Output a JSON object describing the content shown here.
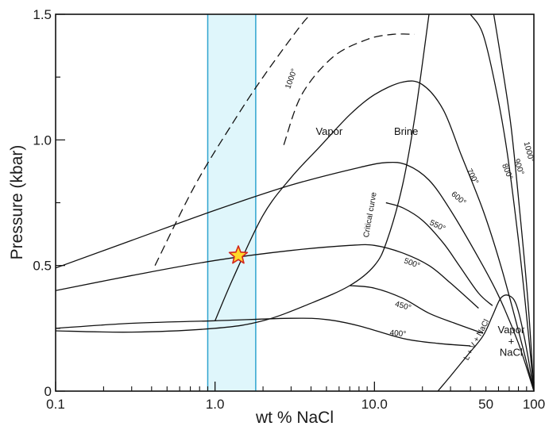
{
  "chart_data": {
    "type": "line",
    "xlabel": "wt % NaCl",
    "ylabel": "Pressure (kbar)",
    "xscale": "log",
    "xlim": [
      0.1,
      100
    ],
    "ylim": [
      0,
      1.5
    ],
    "x_ticks": [
      "0.1",
      "1.0",
      "10.0",
      "50",
      "100"
    ],
    "y_ticks": [
      "0",
      "0.5",
      "1.0",
      "1.5"
    ],
    "highlight_band": {
      "x_from": 0.9,
      "x_to": 1.8,
      "color": "#dff6fb",
      "edge_color": "#2ea3cf"
    },
    "marker": {
      "x": 1.4,
      "y": 0.54,
      "shape": "star",
      "fill": "#ffd92a",
      "stroke": "#d3261d"
    },
    "regions": [
      {
        "label": "Vapor",
        "x": 5.2,
        "y": 1.02
      },
      {
        "label": "Brine",
        "x": 15.8,
        "y": 1.02
      },
      {
        "label": "Vapor",
        "x": 72,
        "y": 0.23
      },
      {
        "label": "+",
        "x": 72,
        "y": 0.185
      },
      {
        "label": "NaCl",
        "x": 72,
        "y": 0.14
      }
    ],
    "curve_labels": [
      {
        "label": "1000°",
        "x": 3.1,
        "y": 1.24,
        "angle": -70
      },
      {
        "label": "1000°",
        "x": 90,
        "y": 0.95,
        "angle": 75
      },
      {
        "label": "900°",
        "x": 78,
        "y": 0.89,
        "angle": 72
      },
      {
        "label": "800°",
        "x": 66,
        "y": 0.87,
        "angle": 68
      },
      {
        "label": "700°",
        "x": 40,
        "y": 0.85,
        "angle": 62
      },
      {
        "label": "600°",
        "x": 33,
        "y": 0.76,
        "angle": 40
      },
      {
        "label": "550°",
        "x": 24.5,
        "y": 0.65,
        "angle": 25
      },
      {
        "label": "500°",
        "x": 17,
        "y": 0.5,
        "angle": 20
      },
      {
        "label": "450°",
        "x": 15,
        "y": 0.33,
        "angle": 15
      },
      {
        "label": "400°",
        "x": 14,
        "y": 0.22,
        "angle": 5
      },
      {
        "label": "Critical curve",
        "x": 9.7,
        "y": 0.7,
        "angle": -80
      },
      {
        "label": "L + V + NaCl",
        "x": 45,
        "y": 0.2,
        "angle": -62
      }
    ],
    "series": [
      {
        "style": "dashed",
        "points": [
          [
            0.42,
            0.5
          ],
          [
            0.75,
            0.82
          ],
          [
            1.3,
            1.07
          ],
          [
            2.0,
            1.25
          ],
          [
            3.4,
            1.45
          ],
          [
            4.0,
            1.5
          ]
        ]
      },
      {
        "style": "dashed",
        "points": [
          [
            2.7,
            0.98
          ],
          [
            3.5,
            1.18
          ],
          [
            5.5,
            1.33
          ],
          [
            9.0,
            1.4
          ],
          [
            13.0,
            1.42
          ],
          [
            17.8,
            1.42
          ]
        ]
      },
      {
        "style": "solid",
        "points": [
          [
            0.1,
            0.49
          ],
          [
            0.3,
            0.6
          ],
          [
            1.0,
            0.72
          ],
          [
            3.0,
            0.82
          ],
          [
            8.0,
            0.89
          ],
          [
            12.0,
            0.91
          ],
          [
            16.0,
            0.9
          ],
          [
            22.0,
            0.84
          ],
          [
            30.0,
            0.72
          ],
          [
            45.0,
            0.53
          ],
          [
            60.0,
            0.38
          ],
          [
            80.0,
            0.19
          ],
          [
            100.0,
            0.0
          ]
        ]
      },
      {
        "style": "solid",
        "points": [
          [
            1.0,
            0.28
          ],
          [
            1.3,
            0.45
          ],
          [
            2.0,
            0.7
          ],
          [
            3.0,
            0.85
          ],
          [
            4.5,
            0.97
          ],
          [
            7.0,
            1.1
          ],
          [
            10.0,
            1.18
          ],
          [
            15.0,
            1.23
          ],
          [
            20.0,
            1.22
          ],
          [
            27.0,
            1.12
          ],
          [
            35.0,
            0.94
          ],
          [
            48.0,
            0.72
          ],
          [
            62.0,
            0.5
          ],
          [
            80.0,
            0.24
          ],
          [
            100.0,
            0.0
          ]
        ]
      },
      {
        "style": "solid",
        "points": [
          [
            0.1,
            0.4
          ],
          [
            0.3,
            0.46
          ],
          [
            1.0,
            0.52
          ],
          [
            3.0,
            0.56
          ],
          [
            7.0,
            0.58
          ],
          [
            10.0,
            0.58
          ],
          [
            15.0,
            0.55
          ],
          [
            22.0,
            0.5
          ],
          [
            30.0,
            0.43
          ],
          [
            45.0,
            0.33
          ]
        ]
      },
      {
        "style": "solid",
        "points": [
          [
            11.8,
            0.75
          ],
          [
            15.0,
            0.73
          ],
          [
            20.0,
            0.68
          ],
          [
            27.0,
            0.59
          ],
          [
            34.0,
            0.5
          ],
          [
            45.0,
            0.39
          ],
          [
            55.0,
            0.34
          ]
        ]
      },
      {
        "style": "solid",
        "points": [
          [
            7.0,
            0.42
          ],
          [
            10.0,
            0.41
          ],
          [
            15.0,
            0.37
          ],
          [
            22.0,
            0.31
          ],
          [
            32.0,
            0.27
          ],
          [
            48.0,
            0.23
          ]
        ]
      },
      {
        "style": "solid",
        "points": [
          [
            0.1,
            0.25
          ],
          [
            0.3,
            0.27
          ],
          [
            1.0,
            0.28
          ],
          [
            3.0,
            0.29
          ],
          [
            5.0,
            0.285
          ],
          [
            8.0,
            0.26
          ],
          [
            15.0,
            0.21
          ],
          [
            25.0,
            0.19
          ],
          [
            40.0,
            0.18
          ]
        ]
      },
      {
        "style": "solid",
        "points": [
          [
            0.1,
            0.24
          ],
          [
            0.3,
            0.235
          ],
          [
            1.0,
            0.25
          ],
          [
            2.0,
            0.28
          ],
          [
            4.0,
            0.35
          ],
          [
            7.0,
            0.42
          ],
          [
            10.0,
            0.5
          ],
          [
            12.0,
            0.6
          ],
          [
            15.0,
            0.82
          ],
          [
            18.0,
            1.1
          ],
          [
            22.0,
            1.5
          ]
        ]
      },
      {
        "style": "solid",
        "points": [
          [
            25.0,
            0.0
          ],
          [
            30.0,
            0.06
          ],
          [
            38.0,
            0.14
          ],
          [
            48.0,
            0.22
          ],
          [
            55.0,
            0.3
          ],
          [
            62.0,
            0.37
          ],
          [
            70.0,
            0.38
          ],
          [
            78.0,
            0.34
          ],
          [
            88.0,
            0.2
          ],
          [
            100.0,
            0.0
          ]
        ]
      },
      {
        "style": "solid",
        "points": [
          [
            40.0,
            1.5
          ],
          [
            48.0,
            1.42
          ],
          [
            58.0,
            1.2
          ],
          [
            68.0,
            0.95
          ],
          [
            80.0,
            0.6
          ],
          [
            90.0,
            0.3
          ],
          [
            100.0,
            0.0
          ]
        ]
      },
      {
        "style": "solid",
        "points": [
          [
            56.0,
            1.5
          ],
          [
            63.0,
            1.3
          ],
          [
            72.0,
            1.05
          ],
          [
            82.0,
            0.7
          ],
          [
            92.0,
            0.35
          ],
          [
            100.0,
            0.0
          ]
        ]
      }
    ]
  }
}
